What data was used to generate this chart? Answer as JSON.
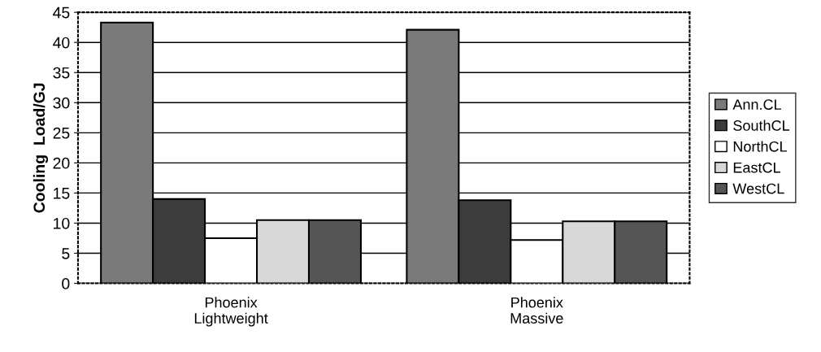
{
  "chart_data": {
    "type": "bar",
    "ylabel": "Cooling  Load/GJ",
    "categories": [
      "Phoenix\nLightweight",
      "Phoenix\nMassive"
    ],
    "series": [
      {
        "name": "Ann.CL",
        "color": "#7a7a7a",
        "values": [
          43.3,
          42.1
        ]
      },
      {
        "name": "SouthCL",
        "color": "#3c3c3c",
        "values": [
          14.0,
          13.8
        ]
      },
      {
        "name": "NorthCL",
        "color": "#ffffff",
        "values": [
          7.5,
          7.2
        ]
      },
      {
        "name": "EastCL",
        "color": "#d8d8d8",
        "values": [
          10.5,
          10.3
        ]
      },
      {
        "name": "WestCL",
        "color": "#555555",
        "values": [
          10.5,
          10.3
        ]
      }
    ],
    "ylim": [
      0,
      45
    ],
    "yticks": [
      0,
      5,
      10,
      15,
      20,
      25,
      30,
      35,
      40,
      45
    ],
    "grid": "y",
    "legend": "right"
  }
}
